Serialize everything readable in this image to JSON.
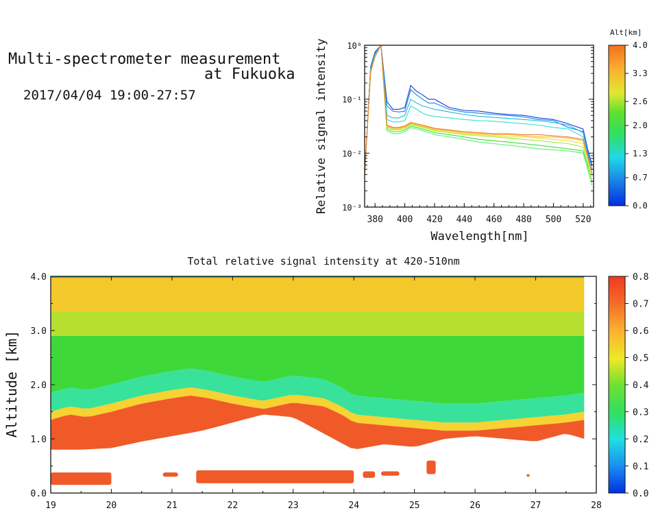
{
  "header": {
    "title_line1": "Multi-spectrometer measurement",
    "title_line2": "at Fukuoka",
    "datetime": "2017/04/04 19:00-27:57"
  },
  "chart_data": [
    {
      "type": "line",
      "xlabel": "Wavelength[nm]",
      "ylabel": "Relative signal intensity",
      "xlim": [
        373,
        527
      ],
      "ylim": [
        0.001,
        1
      ],
      "yscale": "log",
      "x_ticks": [
        "380",
        "400",
        "420",
        "440",
        "460",
        "480",
        "500",
        "520"
      ],
      "y_ticks": [
        "10⁻³",
        "10⁻²",
        "10⁻¹",
        "10⁰"
      ],
      "x": [
        373,
        377,
        380,
        384,
        388,
        392,
        396,
        400,
        404,
        408,
        412,
        416,
        420,
        430,
        440,
        450,
        460,
        470,
        480,
        490,
        500,
        510,
        520,
        523,
        526
      ],
      "colorbar": {
        "title": "Alt[km]",
        "ticks": [
          "0.0",
          "0.7",
          "1.3",
          "2.0",
          "2.6",
          "3.3",
          "4.0"
        ],
        "range": [
          0,
          4
        ]
      },
      "series": [
        {
          "alt": 0.2,
          "color": "#0b3fd8",
          "values": [
            0.004,
            0.4,
            0.75,
            1.0,
            0.09,
            0.065,
            0.065,
            0.07,
            0.18,
            0.14,
            0.12,
            0.1,
            0.1,
            0.07,
            0.062,
            0.06,
            0.055,
            0.052,
            0.05,
            0.045,
            0.042,
            0.035,
            0.028,
            0.012,
            0.006
          ]
        },
        {
          "alt": 0.5,
          "color": "#1a7fe6",
          "values": [
            0.004,
            0.38,
            0.7,
            1.0,
            0.075,
            0.06,
            0.058,
            0.06,
            0.15,
            0.12,
            0.1,
            0.085,
            0.085,
            0.065,
            0.058,
            0.055,
            0.052,
            0.05,
            0.047,
            0.042,
            0.04,
            0.03,
            0.025,
            0.011,
            0.005
          ]
        },
        {
          "alt": 0.8,
          "color": "#19b8e8",
          "values": [
            0.004,
            0.36,
            0.68,
            1.0,
            0.05,
            0.045,
            0.045,
            0.05,
            0.1,
            0.085,
            0.075,
            0.07,
            0.065,
            0.058,
            0.052,
            0.048,
            0.046,
            0.044,
            0.042,
            0.04,
            0.037,
            0.033,
            0.024,
            0.01,
            0.005
          ]
        },
        {
          "alt": 1.1,
          "color": "#2fe0d2",
          "values": [
            0.004,
            0.34,
            0.66,
            1.0,
            0.042,
            0.038,
            0.038,
            0.04,
            0.075,
            0.065,
            0.055,
            0.05,
            0.048,
            0.045,
            0.042,
            0.04,
            0.039,
            0.037,
            0.035,
            0.033,
            0.03,
            0.028,
            0.02,
            0.009,
            0.004
          ]
        },
        {
          "alt": 1.6,
          "color": "#5ef06a",
          "values": [
            0.004,
            0.33,
            0.64,
            1.0,
            0.026,
            0.023,
            0.023,
            0.025,
            0.03,
            0.028,
            0.026,
            0.024,
            0.022,
            0.02,
            0.018,
            0.016,
            0.015,
            0.014,
            0.013,
            0.012,
            0.0115,
            0.011,
            0.01,
            0.005,
            0.0025
          ]
        },
        {
          "alt": 1.9,
          "color": "#3edc3a",
          "values": [
            0.004,
            0.32,
            0.62,
            1.0,
            0.028,
            0.025,
            0.025,
            0.027,
            0.032,
            0.03,
            0.028,
            0.026,
            0.024,
            0.022,
            0.02,
            0.018,
            0.017,
            0.016,
            0.015,
            0.014,
            0.013,
            0.012,
            0.011,
            0.006,
            0.003
          ]
        },
        {
          "alt": 2.3,
          "color": "#a9e836",
          "values": [
            0.004,
            0.32,
            0.62,
            1.0,
            0.03,
            0.027,
            0.027,
            0.029,
            0.034,
            0.032,
            0.03,
            0.028,
            0.026,
            0.024,
            0.022,
            0.021,
            0.02,
            0.019,
            0.018,
            0.017,
            0.016,
            0.015,
            0.013,
            0.007,
            0.003
          ]
        },
        {
          "alt": 2.8,
          "color": "#f2de25",
          "values": [
            0.004,
            0.32,
            0.62,
            1.0,
            0.031,
            0.028,
            0.028,
            0.03,
            0.035,
            0.033,
            0.031,
            0.029,
            0.027,
            0.025,
            0.023,
            0.022,
            0.021,
            0.02,
            0.02,
            0.019,
            0.018,
            0.017,
            0.015,
            0.008,
            0.004
          ]
        },
        {
          "alt": 3.3,
          "color": "#fbb030",
          "values": [
            0.004,
            0.32,
            0.62,
            1.0,
            0.032,
            0.029,
            0.029,
            0.031,
            0.036,
            0.034,
            0.032,
            0.03,
            0.028,
            0.026,
            0.024,
            0.023,
            0.022,
            0.022,
            0.021,
            0.02,
            0.02,
            0.019,
            0.017,
            0.009,
            0.004
          ]
        },
        {
          "alt": 3.8,
          "color": "#f07830",
          "values": [
            0.004,
            0.32,
            0.62,
            1.0,
            0.033,
            0.03,
            0.03,
            0.032,
            0.037,
            0.035,
            0.033,
            0.031,
            0.029,
            0.027,
            0.025,
            0.024,
            0.023,
            0.023,
            0.022,
            0.022,
            0.021,
            0.02,
            0.018,
            0.009,
            0.004
          ]
        }
      ]
    },
    {
      "type": "heatmap",
      "title": "Total relative signal intensity at 420-510nm",
      "ylabel": "Altitude [km]",
      "xlim": [
        19,
        28
      ],
      "ylim": [
        0,
        4
      ],
      "x_ticks": [
        "19",
        "20",
        "21",
        "22",
        "23",
        "24",
        "25",
        "26",
        "27",
        "28"
      ],
      "y_ticks": [
        "0.0",
        "1.0",
        "2.0",
        "3.0",
        "4.0"
      ],
      "colorbar": {
        "ticks": [
          "0.0",
          "0.1",
          "0.2",
          "0.3",
          "0.4",
          "0.5",
          "0.6",
          "0.7",
          "0.8"
        ],
        "range": [
          0,
          0.8
        ]
      },
      "data_extent_x": [
        19,
        27.8
      ],
      "cloud_base_km": {
        "x": [
          19,
          19.3,
          19.6,
          20,
          20.5,
          21,
          21.3,
          21.6,
          22,
          22.5,
          23,
          23.5,
          23.8,
          24,
          24.5,
          25,
          25.5,
          26,
          26.5,
          27,
          27.5,
          27.8
        ],
        "y": [
          1.4,
          1.5,
          1.45,
          1.55,
          1.7,
          1.8,
          1.85,
          1.8,
          1.7,
          1.6,
          1.72,
          1.65,
          1.5,
          1.35,
          1.3,
          1.25,
          1.2,
          1.2,
          1.25,
          1.3,
          1.35,
          1.4
        ]
      },
      "signal_floor_km": {
        "x": [
          19,
          19.5,
          20,
          20.5,
          21,
          21.5,
          22,
          22.5,
          23,
          23.5,
          24,
          24.5,
          25,
          25.5,
          26,
          26.5,
          27,
          27.5,
          27.8
        ],
        "y": [
          0.8,
          0.8,
          0.83,
          0.95,
          1.05,
          1.15,
          1.3,
          1.45,
          1.4,
          1.1,
          0.8,
          0.9,
          0.85,
          1.0,
          1.05,
          1.0,
          0.95,
          1.1,
          1.0
        ]
      },
      "low_layer_segments": [
        {
          "x0": 19.0,
          "x1": 20.0,
          "y0": 0.15,
          "y1": 0.38
        },
        {
          "x0": 20.85,
          "x1": 21.1,
          "y0": 0.3,
          "y1": 0.38
        },
        {
          "x0": 21.4,
          "x1": 24.0,
          "y0": 0.18,
          "y1": 0.42
        },
        {
          "x0": 24.15,
          "x1": 24.35,
          "y0": 0.28,
          "y1": 0.4
        },
        {
          "x0": 24.45,
          "x1": 24.75,
          "y0": 0.32,
          "y1": 0.4
        },
        {
          "x0": 25.2,
          "x1": 25.35,
          "y0": 0.35,
          "y1": 0.6
        },
        {
          "x0": 26.85,
          "x1": 26.9,
          "y0": 0.3,
          "y1": 0.35
        }
      ]
    }
  ]
}
